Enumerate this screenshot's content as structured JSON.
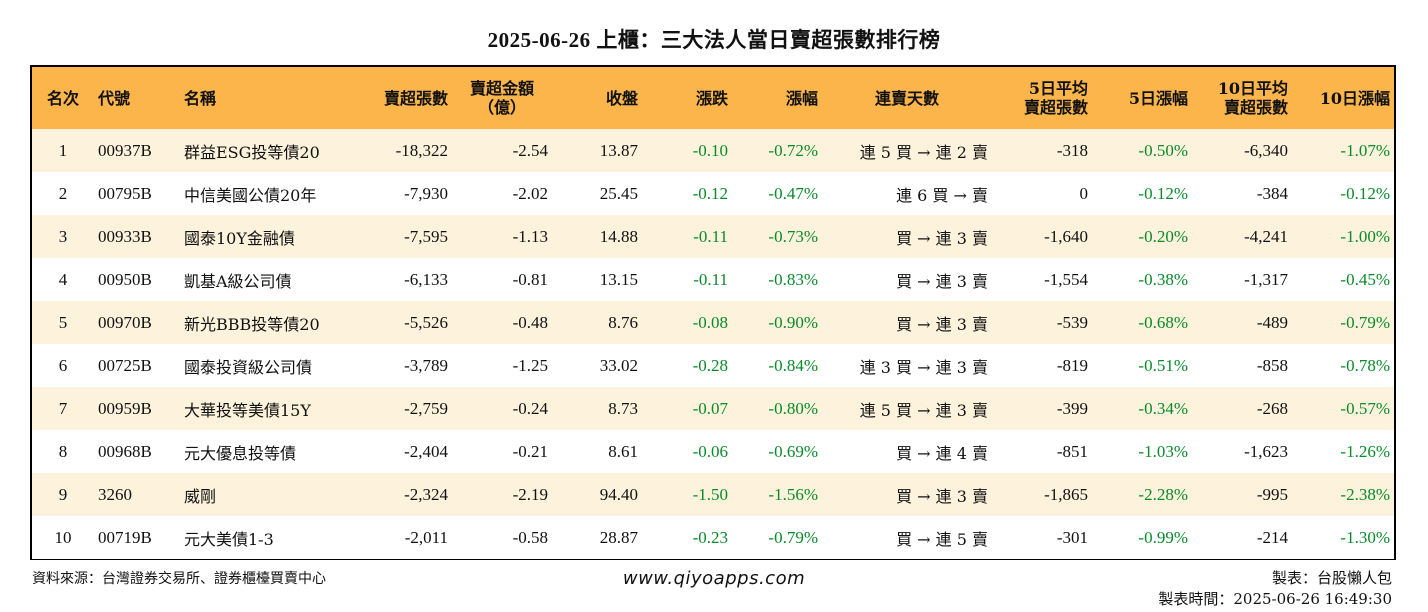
{
  "title": "2025-06-26 上櫃：三大法人當日賣超張數排行榜",
  "colors": {
    "header_bg": "#fbb54b",
    "odd_row_bg": "#fdf2dc",
    "negative": "#0a8a2a"
  },
  "headers": {
    "rank": "名次",
    "code": "代號",
    "name": "名稱",
    "sell_lots": "賣超張數",
    "sell_amount_1": "賣超金額",
    "sell_amount_2": "（億）",
    "close": "收盤",
    "change": "漲跌",
    "pct": "漲幅",
    "streak": "連賣天數",
    "avg5_1": "5日平均",
    "avg5_2": "賣超張數",
    "pct5": "5日漲幅",
    "avg10_1": "10日平均",
    "avg10_2": "賣超張數",
    "pct10": "10日漲幅"
  },
  "rows": [
    {
      "rank": "1",
      "code": "00937B",
      "name": "群益ESG投等債20",
      "sell_lots": "-18,322",
      "amount": "-2.54",
      "close": "13.87",
      "change": "-0.10",
      "pct": "-0.72%",
      "streak": "連 5 買 → 連 2 賣",
      "avg5": "-318",
      "pct5": "-0.50%",
      "avg10": "-6,340",
      "pct10": "-1.07%"
    },
    {
      "rank": "2",
      "code": "00795B",
      "name": "中信美國公債20年",
      "sell_lots": "-7,930",
      "amount": "-2.02",
      "close": "25.45",
      "change": "-0.12",
      "pct": "-0.47%",
      "streak": "連 6 買 → 賣",
      "avg5": "0",
      "pct5": "-0.12%",
      "avg10": "-384",
      "pct10": "-0.12%"
    },
    {
      "rank": "3",
      "code": "00933B",
      "name": "國泰10Y金融債",
      "sell_lots": "-7,595",
      "amount": "-1.13",
      "close": "14.88",
      "change": "-0.11",
      "pct": "-0.73%",
      "streak": "買 → 連 3 賣",
      "avg5": "-1,640",
      "pct5": "-0.20%",
      "avg10": "-4,241",
      "pct10": "-1.00%"
    },
    {
      "rank": "4",
      "code": "00950B",
      "name": "凱基A級公司債",
      "sell_lots": "-6,133",
      "amount": "-0.81",
      "close": "13.15",
      "change": "-0.11",
      "pct": "-0.83%",
      "streak": "買 → 連 3 賣",
      "avg5": "-1,554",
      "pct5": "-0.38%",
      "avg10": "-1,317",
      "pct10": "-0.45%"
    },
    {
      "rank": "5",
      "code": "00970B",
      "name": "新光BBB投等債20",
      "sell_lots": "-5,526",
      "amount": "-0.48",
      "close": "8.76",
      "change": "-0.08",
      "pct": "-0.90%",
      "streak": "買 → 連 3 賣",
      "avg5": "-539",
      "pct5": "-0.68%",
      "avg10": "-489",
      "pct10": "-0.79%"
    },
    {
      "rank": "6",
      "code": "00725B",
      "name": "國泰投資級公司債",
      "sell_lots": "-3,789",
      "amount": "-1.25",
      "close": "33.02",
      "change": "-0.28",
      "pct": "-0.84%",
      "streak": "連 3 買 → 連 3 賣",
      "avg5": "-819",
      "pct5": "-0.51%",
      "avg10": "-858",
      "pct10": "-0.78%"
    },
    {
      "rank": "7",
      "code": "00959B",
      "name": "大華投等美債15Y",
      "sell_lots": "-2,759",
      "amount": "-0.24",
      "close": "8.73",
      "change": "-0.07",
      "pct": "-0.80%",
      "streak": "連 5 買 → 連 3 賣",
      "avg5": "-399",
      "pct5": "-0.34%",
      "avg10": "-268",
      "pct10": "-0.57%"
    },
    {
      "rank": "8",
      "code": "00968B",
      "name": "元大優息投等債",
      "sell_lots": "-2,404",
      "amount": "-0.21",
      "close": "8.61",
      "change": "-0.06",
      "pct": "-0.69%",
      "streak": "買 → 連 4 賣",
      "avg5": "-851",
      "pct5": "-1.03%",
      "avg10": "-1,623",
      "pct10": "-1.26%"
    },
    {
      "rank": "9",
      "code": "3260",
      "name": "威剛",
      "sell_lots": "-2,324",
      "amount": "-2.19",
      "close": "94.40",
      "change": "-1.50",
      "pct": "-1.56%",
      "streak": "買 → 連 3 賣",
      "avg5": "-1,865",
      "pct5": "-2.28%",
      "avg10": "-995",
      "pct10": "-2.38%"
    },
    {
      "rank": "10",
      "code": "00719B",
      "name": "元大美債1-3",
      "sell_lots": "-2,011",
      "amount": "-0.58",
      "close": "28.87",
      "change": "-0.23",
      "pct": "-0.79%",
      "streak": "買 → 連 5 賣",
      "avg5": "-301",
      "pct5": "-0.99%",
      "avg10": "-214",
      "pct10": "-1.30%"
    }
  ],
  "footer": {
    "source": "資料來源：台灣證券交易所、證券櫃檯買賣中心",
    "website": "www.qiyoapps.com",
    "maker": "製表：台股懶人包",
    "made_time": "製表時間：2025-06-26 16:49:30"
  }
}
